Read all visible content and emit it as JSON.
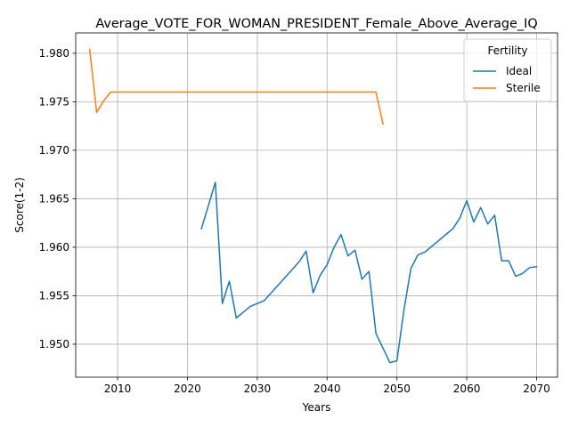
{
  "chart_data": {
    "type": "line",
    "title": "Average_VOTE_FOR_WOMAN_PRESIDENT_Female_Above_Average_IQ",
    "xlabel": "Years",
    "ylabel": "Score(1-2)",
    "xlim": [
      2004,
      2073
    ],
    "ylim": [
      1.9466,
      1.9821
    ],
    "xticks": [
      2010,
      2020,
      2030,
      2040,
      2050,
      2060,
      2070
    ],
    "yticks": [
      1.95,
      1.955,
      1.96,
      1.965,
      1.97,
      1.975,
      1.98
    ],
    "xtick_labels": [
      "2010",
      "2020",
      "2030",
      "2040",
      "2050",
      "2060",
      "2070"
    ],
    "ytick_labels": [
      "1.950",
      "1.955",
      "1.960",
      "1.965",
      "1.970",
      "1.975",
      "1.980"
    ],
    "grid": true,
    "legend": {
      "title": "Fertility",
      "position": "top-right"
    },
    "series": [
      {
        "name": "Ideal",
        "color": "#1f77b4",
        "x": [
          2022,
          2023,
          2024,
          2025,
          2026,
          2027,
          2028,
          2029,
          2030,
          2031,
          2032,
          2033,
          2034,
          2035,
          2036,
          2037,
          2038,
          2039,
          2040,
          2041,
          2042,
          2043,
          2044,
          2045,
          2046,
          2047,
          2048,
          2049,
          2050,
          2051,
          2052,
          2053,
          2054,
          2055,
          2056,
          2057,
          2058,
          2059,
          2060,
          2061,
          2062,
          2063,
          2064,
          2065,
          2066,
          2067,
          2068,
          2069,
          2070
        ],
        "y": [
          1.9619,
          1.9643,
          1.9667,
          1.9542,
          1.9565,
          1.9527,
          1.9533,
          1.9539,
          1.9542,
          1.9545,
          1.9553,
          1.9561,
          1.9569,
          1.9577,
          1.9585,
          1.9596,
          1.9553,
          1.9571,
          1.9582,
          1.96,
          1.9613,
          1.9591,
          1.9597,
          1.9567,
          1.9575,
          1.9511,
          1.9496,
          1.9481,
          1.9483,
          1.9535,
          1.9578,
          1.9592,
          1.9595,
          1.9601,
          1.9607,
          1.9613,
          1.9619,
          1.963,
          1.9648,
          1.9626,
          1.9641,
          1.9624,
          1.9633,
          1.9586,
          1.9586,
          1.957,
          1.9573,
          1.9579,
          1.958
        ]
      },
      {
        "name": "Sterile",
        "color": "#ff7f0e",
        "x": [
          2006,
          2007,
          2008,
          2009,
          2010,
          2015,
          2020,
          2025,
          2030,
          2035,
          2040,
          2045,
          2046,
          2047,
          2048
        ],
        "y": [
          1.9804,
          1.9739,
          1.9751,
          1.976,
          1.976,
          1.976,
          1.976,
          1.976,
          1.976,
          1.976,
          1.976,
          1.976,
          1.976,
          1.976,
          1.9727
        ]
      }
    ]
  }
}
